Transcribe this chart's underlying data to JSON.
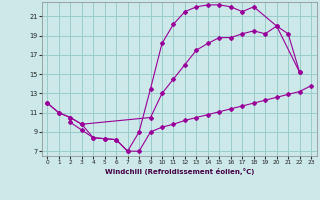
{
  "xlabel": "Windchill (Refroidissement éolien,°C)",
  "bg_color": "#cce8e8",
  "grid_color": "#99cccc",
  "line_color": "#990099",
  "xlim": [
    -0.5,
    23.5
  ],
  "ylim": [
    6.5,
    22.5
  ],
  "yticks": [
    7,
    9,
    11,
    13,
    15,
    17,
    19,
    21
  ],
  "xticks": [
    0,
    1,
    2,
    3,
    4,
    5,
    6,
    7,
    8,
    9,
    10,
    11,
    12,
    13,
    14,
    15,
    16,
    17,
    18,
    19,
    20,
    21,
    22,
    23
  ],
  "line1_x": [
    0,
    1,
    2,
    3,
    4,
    5,
    6,
    7,
    8,
    9,
    10,
    11,
    12,
    13,
    14,
    15,
    16,
    17,
    18,
    20,
    22
  ],
  "line1_y": [
    12.0,
    11.0,
    10.5,
    9.8,
    8.4,
    8.3,
    8.2,
    7.0,
    9.0,
    13.5,
    18.2,
    20.2,
    21.5,
    22.0,
    22.2,
    22.2,
    22.0,
    21.5,
    22.0,
    20.0,
    15.2
  ],
  "line2_x": [
    0,
    1,
    2,
    3,
    9,
    10,
    11,
    12,
    13,
    14,
    15,
    16,
    17,
    18,
    19,
    20,
    21,
    22
  ],
  "line2_y": [
    12.0,
    11.0,
    10.5,
    9.8,
    10.5,
    13.0,
    14.5,
    16.0,
    17.5,
    18.2,
    18.8,
    18.8,
    19.2,
    19.5,
    19.2,
    20.0,
    19.2,
    15.2
  ],
  "line3_x": [
    2,
    3,
    4,
    5,
    6,
    7,
    8,
    9,
    10,
    11,
    12,
    13,
    14,
    15,
    16,
    17,
    18,
    19,
    20,
    21,
    22,
    23
  ],
  "line3_y": [
    10.0,
    9.2,
    8.4,
    8.3,
    8.2,
    7.0,
    7.0,
    9.0,
    9.5,
    9.8,
    10.2,
    10.5,
    10.8,
    11.1,
    11.4,
    11.7,
    12.0,
    12.3,
    12.6,
    12.9,
    13.2,
    13.8
  ]
}
